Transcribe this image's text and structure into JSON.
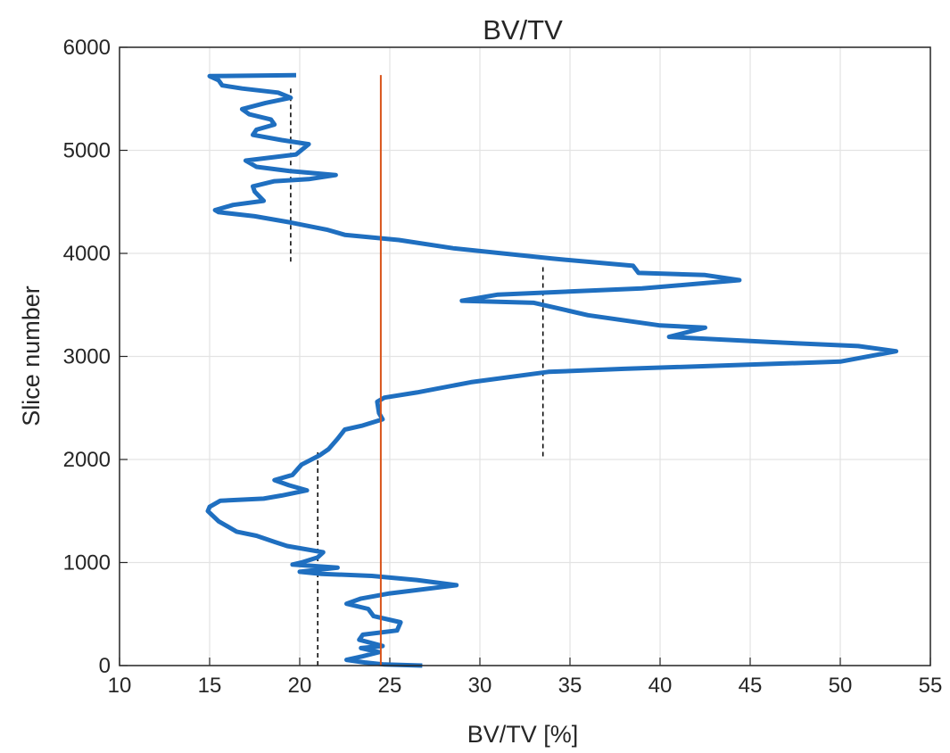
{
  "chart_data": {
    "type": "line",
    "title": "BV/TV",
    "xlabel": "BV/TV [%]",
    "ylabel": "Slice number",
    "xlim": [
      10,
      55
    ],
    "ylim": [
      0,
      6000
    ],
    "xticks": [
      "10",
      "15",
      "20",
      "25",
      "30",
      "35",
      "40",
      "45",
      "50",
      "55"
    ],
    "yticks": [
      "0",
      "1000",
      "2000",
      "3000",
      "4000",
      "5000",
      "6000"
    ],
    "grid": true,
    "colors": {
      "profile": "#1f6fc0",
      "mean": "#d95319",
      "segment_mean": "#000000"
    },
    "series": [
      {
        "role": "profile",
        "points": [
          [
            26.8,
            0
          ],
          [
            24.7,
            10
          ],
          [
            23.6,
            30
          ],
          [
            22.6,
            55
          ],
          [
            23.5,
            90
          ],
          [
            24.4,
            130
          ],
          [
            23.4,
            170
          ],
          [
            24.6,
            190
          ],
          [
            23.3,
            250
          ],
          [
            23.5,
            300
          ],
          [
            25.4,
            340
          ],
          [
            25.6,
            420
          ],
          [
            24.1,
            480
          ],
          [
            23.8,
            550
          ],
          [
            22.6,
            600
          ],
          [
            23.4,
            650
          ],
          [
            25.0,
            700
          ],
          [
            28.7,
            780
          ],
          [
            26.5,
            830
          ],
          [
            24.0,
            870
          ],
          [
            21.2,
            890
          ],
          [
            20.0,
            910
          ],
          [
            22.1,
            950
          ],
          [
            19.6,
            980
          ],
          [
            20.1,
            1000
          ],
          [
            21.0,
            1050
          ],
          [
            21.3,
            1100
          ],
          [
            19.3,
            1160
          ],
          [
            18.6,
            1200
          ],
          [
            17.6,
            1260
          ],
          [
            16.5,
            1300
          ],
          [
            15.5,
            1400
          ],
          [
            14.9,
            1500
          ],
          [
            15.0,
            1540
          ],
          [
            15.6,
            1600
          ],
          [
            18.0,
            1620
          ],
          [
            19.0,
            1650
          ],
          [
            20.4,
            1700
          ],
          [
            19.4,
            1750
          ],
          [
            18.6,
            1800
          ],
          [
            19.6,
            1850
          ],
          [
            20.1,
            1950
          ],
          [
            21.1,
            2040
          ],
          [
            21.6,
            2100
          ],
          [
            22.1,
            2200
          ],
          [
            22.5,
            2290
          ],
          [
            23.5,
            2330
          ],
          [
            24.6,
            2390
          ],
          [
            24.4,
            2450
          ],
          [
            24.3,
            2560
          ],
          [
            24.7,
            2600
          ],
          [
            26.5,
            2650
          ],
          [
            29.5,
            2750
          ],
          [
            33.8,
            2850
          ],
          [
            38.0,
            2880
          ],
          [
            50.0,
            2950
          ],
          [
            53.1,
            3050
          ],
          [
            51.0,
            3100
          ],
          [
            46.0,
            3140
          ],
          [
            40.5,
            3190
          ],
          [
            42.5,
            3280
          ],
          [
            40.0,
            3300
          ],
          [
            36.0,
            3400
          ],
          [
            33.0,
            3520
          ],
          [
            29.0,
            3540
          ],
          [
            31.0,
            3600
          ],
          [
            39.0,
            3660
          ],
          [
            44.4,
            3740
          ],
          [
            42.5,
            3790
          ],
          [
            38.8,
            3810
          ],
          [
            38.5,
            3880
          ],
          [
            34.0,
            3950
          ],
          [
            28.5,
            4050
          ],
          [
            25.5,
            4130
          ],
          [
            22.5,
            4180
          ],
          [
            21.5,
            4230
          ],
          [
            19.5,
            4300
          ],
          [
            17.5,
            4360
          ],
          [
            15.5,
            4400
          ],
          [
            15.3,
            4420
          ],
          [
            16.3,
            4470
          ],
          [
            18.0,
            4510
          ],
          [
            17.5,
            4600
          ],
          [
            17.4,
            4650
          ],
          [
            18.6,
            4700
          ],
          [
            20.5,
            4720
          ],
          [
            22.0,
            4760
          ],
          [
            19.4,
            4800
          ],
          [
            17.6,
            4840
          ],
          [
            17.0,
            4900
          ],
          [
            19.8,
            4960
          ],
          [
            20.5,
            5060
          ],
          [
            19.0,
            5100
          ],
          [
            17.4,
            5150
          ],
          [
            17.6,
            5200
          ],
          [
            18.6,
            5250
          ],
          [
            18.4,
            5300
          ],
          [
            17.2,
            5350
          ],
          [
            16.8,
            5400
          ],
          [
            18.1,
            5460
          ],
          [
            19.5,
            5510
          ],
          [
            18.8,
            5560
          ],
          [
            16.8,
            5600
          ],
          [
            15.7,
            5630
          ],
          [
            15.5,
            5680
          ],
          [
            15.0,
            5720
          ],
          [
            19.8,
            5730
          ]
        ]
      },
      {
        "role": "mean",
        "x": 24.5,
        "y_range": [
          0,
          5730
        ]
      },
      {
        "role": "segment_mean",
        "x": 21.0,
        "y_range": [
          0,
          2090
        ]
      },
      {
        "role": "segment_mean",
        "x": 33.5,
        "y_range": [
          2030,
          3880
        ]
      },
      {
        "role": "segment_mean",
        "x": 19.5,
        "y_range": [
          3920,
          5600
        ]
      }
    ]
  }
}
